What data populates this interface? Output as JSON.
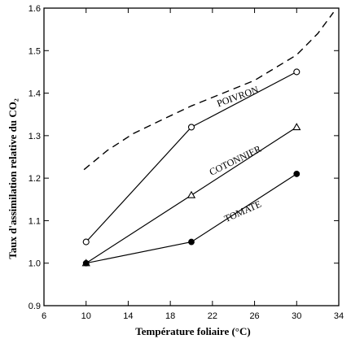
{
  "chart_data": {
    "type": "line",
    "title": "",
    "xlabel": "Température foliaire (°C)",
    "ylabel": "Taux d'assimilation relative du CO₂",
    "xlim": [
      6,
      34
    ],
    "ylim": [
      0.9,
      1.6
    ],
    "xticks": [
      6,
      10,
      14,
      18,
      22,
      26,
      30,
      34
    ],
    "xtick_labels": [
      "6",
      "10",
      "14",
      "18",
      "22",
      "26",
      "30",
      "34"
    ],
    "yticks": [
      0.9,
      1.0,
      1.1,
      1.2,
      1.3,
      1.4,
      1.5,
      1.6
    ],
    "ytick_labels": [
      "0.9",
      "1.0",
      "1.1",
      "1.2",
      "1.3",
      "1.4",
      "1.5",
      "1.6"
    ],
    "grid": false,
    "legend": "none",
    "series": [
      {
        "name": "POIVRON",
        "marker": "open-circle",
        "line": "solid",
        "x": [
          10,
          20,
          30
        ],
        "y": [
          1.05,
          1.32,
          1.45
        ],
        "label_at": [
          24.5,
          1.385
        ],
        "label_angle": -20
      },
      {
        "name": "COTONNIER",
        "marker": "open-triangle",
        "line": "solid",
        "x": [
          10,
          20,
          30
        ],
        "y": [
          1.0,
          1.16,
          1.32
        ],
        "label_at": [
          24.3,
          1.235
        ],
        "label_angle": -26
      },
      {
        "name": "TOMATE",
        "marker": "filled-circle",
        "line": "solid",
        "x": [
          10,
          20,
          30
        ],
        "y": [
          1.0,
          1.05,
          1.21
        ],
        "label_at": [
          25.0,
          1.115
        ],
        "label_angle": -24
      },
      {
        "marker": "none",
        "line": "dashed",
        "x": [
          9.8,
          12,
          14.5,
          17,
          20,
          23,
          26,
          28,
          30,
          32,
          33.5
        ],
        "y": [
          1.22,
          1.265,
          1.305,
          1.335,
          1.37,
          1.4,
          1.43,
          1.46,
          1.49,
          1.54,
          1.59
        ]
      }
    ]
  }
}
